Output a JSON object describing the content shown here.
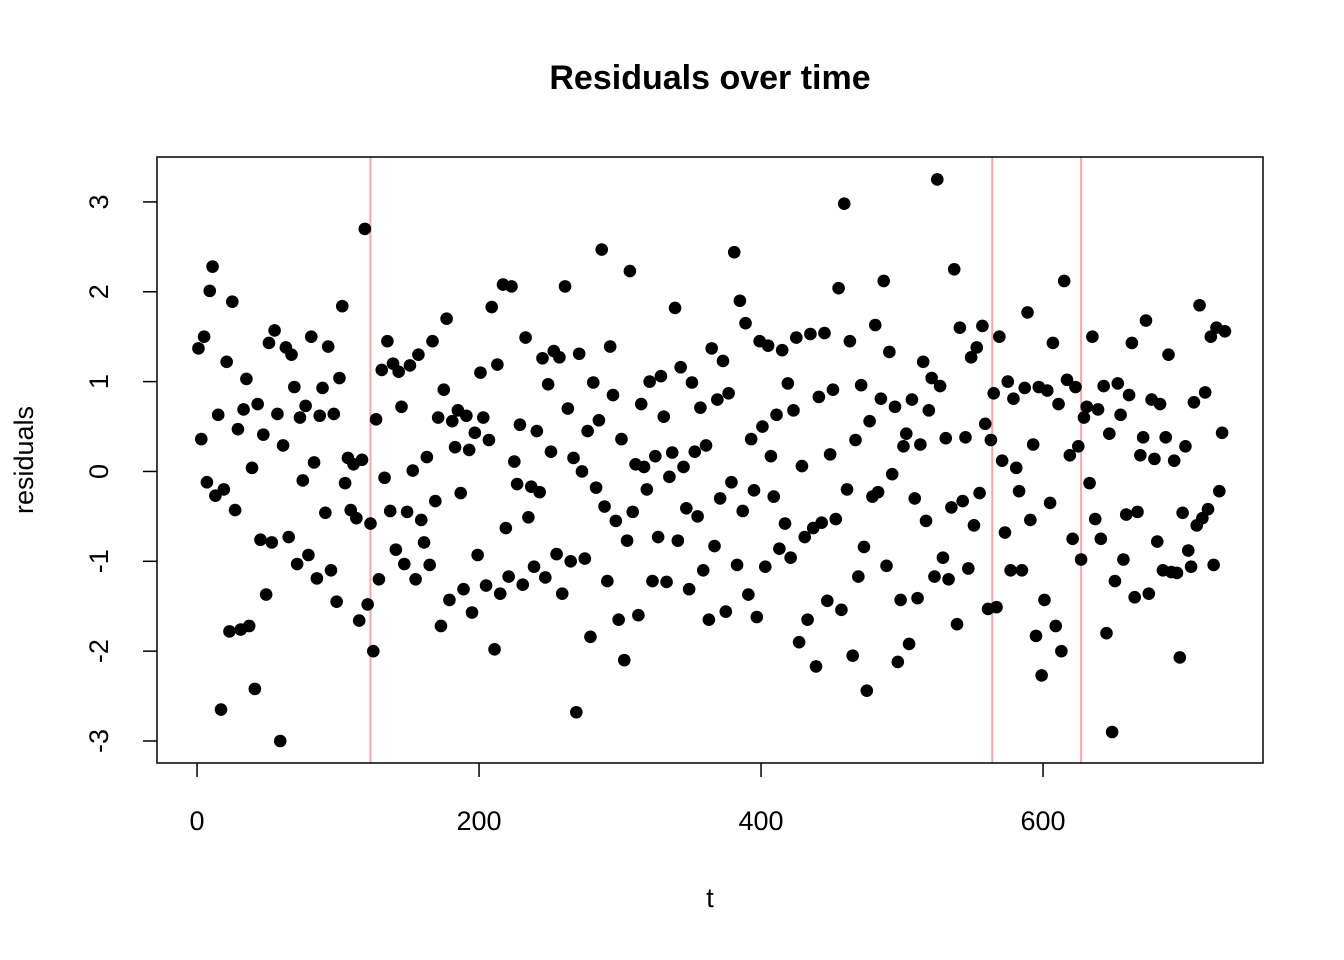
{
  "chart_data": {
    "type": "scatter",
    "title": "Residuals over time",
    "x_label": "t",
    "y_label": "residuals",
    "x": [
      1,
      3,
      5,
      7,
      9,
      11,
      13,
      15,
      17,
      19,
      21,
      23,
      25,
      27,
      29,
      31,
      33,
      35,
      37,
      39,
      41,
      43,
      45,
      47,
      49,
      51,
      53,
      55,
      57,
      59,
      61,
      63,
      65,
      67,
      69,
      71,
      73,
      75,
      77,
      79,
      81,
      83,
      85,
      87,
      89,
      91,
      93,
      95,
      97,
      99,
      101,
      103,
      105,
      107,
      109,
      111,
      113,
      115,
      117,
      119,
      121,
      123,
      125,
      127,
      129,
      131,
      133,
      135,
      137,
      139,
      141,
      143,
      145,
      147,
      149,
      151,
      153,
      155,
      157,
      159,
      161,
      163,
      165,
      167,
      169,
      171,
      173,
      175,
      177,
      179,
      181,
      183,
      185,
      187,
      189,
      191,
      193,
      195,
      197,
      199,
      201,
      203,
      205,
      207,
      209,
      211,
      213,
      215,
      217,
      219,
      221,
      223,
      225,
      227,
      229,
      231,
      233,
      235,
      237,
      239,
      241,
      243,
      245,
      247,
      249,
      251,
      253,
      255,
      257,
      259,
      261,
      263,
      265,
      267,
      269,
      271,
      273,
      275,
      277,
      279,
      281,
      283,
      285,
      287,
      289,
      291,
      293,
      295,
      297,
      299,
      301,
      303,
      305,
      307,
      309,
      311,
      313,
      315,
      317,
      319,
      321,
      323,
      325,
      327,
      329,
      331,
      333,
      335,
      337,
      339,
      341,
      343,
      345,
      347,
      349,
      351,
      353,
      355,
      357,
      359,
      361,
      363,
      365,
      367,
      369,
      371,
      373,
      375,
      377,
      379,
      381,
      383,
      385,
      387,
      389,
      391,
      393,
      395,
      397,
      399,
      401,
      403,
      405,
      407,
      409,
      411,
      413,
      415,
      417,
      419,
      421,
      423,
      425,
      427,
      429,
      431,
      433,
      435,
      437,
      439,
      441,
      443,
      445,
      447,
      449,
      451,
      453,
      455,
      457,
      459,
      461,
      463,
      465,
      467,
      469,
      471,
      473,
      475,
      477,
      479,
      481,
      483,
      485,
      487,
      489,
      491,
      493,
      495,
      497,
      499,
      501,
      503,
      505,
      507,
      509,
      511,
      513,
      515,
      517,
      519,
      521,
      523,
      525,
      527,
      529,
      531,
      533,
      535,
      537,
      539,
      541,
      543,
      545,
      547,
      549,
      551,
      553,
      555,
      557,
      559,
      561,
      563,
      565,
      567,
      569,
      571,
      573,
      575,
      577,
      579,
      581,
      583,
      585,
      587,
      589,
      591,
      593,
      595,
      597,
      599,
      601,
      603,
      605,
      607,
      609,
      611,
      613,
      615,
      617,
      619,
      621,
      623,
      625,
      627,
      629,
      631,
      633,
      635,
      637,
      639,
      641,
      643,
      645,
      647,
      649,
      651,
      653,
      655,
      657,
      659,
      661,
      663,
      665,
      667,
      669,
      671,
      673,
      675,
      677,
      679,
      681,
      683,
      685,
      687,
      689,
      691,
      693,
      695,
      697,
      699,
      701,
      703,
      705,
      707,
      709,
      711,
      713,
      715,
      717,
      719,
      721,
      723,
      725,
      727,
      729
    ],
    "values": [
      1.37,
      0.36,
      1.5,
      -0.12,
      2.01,
      2.28,
      -0.27,
      0.63,
      -2.65,
      -0.2,
      1.22,
      -1.78,
      1.89,
      -0.43,
      0.47,
      -1.76,
      0.69,
      1.03,
      -1.72,
      0.04,
      -2.42,
      0.75,
      -0.76,
      0.41,
      -1.37,
      1.43,
      -0.79,
      1.57,
      0.64,
      -3.0,
      0.29,
      1.38,
      -0.73,
      1.3,
      0.94,
      -1.03,
      0.6,
      -0.1,
      0.73,
      -0.93,
      1.5,
      0.1,
      -1.19,
      0.62,
      0.93,
      -0.46,
      1.39,
      -1.1,
      0.64,
      -1.45,
      1.04,
      1.84,
      -0.13,
      0.15,
      -0.43,
      0.08,
      -0.52,
      -1.66,
      0.13,
      2.7,
      -1.48,
      -0.58,
      -2.0,
      0.58,
      -1.2,
      1.13,
      -0.07,
      1.45,
      -0.44,
      1.2,
      -0.87,
      1.11,
      0.72,
      -1.03,
      -0.45,
      1.18,
      0.01,
      -1.2,
      1.3,
      -0.54,
      -0.79,
      0.16,
      -1.04,
      1.45,
      -0.33,
      0.6,
      -1.72,
      0.91,
      1.7,
      -1.43,
      0.56,
      0.27,
      0.68,
      -0.24,
      -1.31,
      0.62,
      0.24,
      -1.57,
      0.43,
      -0.93,
      1.1,
      0.6,
      -1.27,
      0.35,
      1.83,
      -1.98,
      1.19,
      -1.36,
      2.08,
      -0.63,
      -1.17,
      2.06,
      0.11,
      -0.14,
      0.52,
      -1.26,
      1.49,
      -0.51,
      -0.17,
      -1.06,
      0.45,
      -0.23,
      1.26,
      -1.18,
      0.97,
      0.22,
      1.34,
      -0.92,
      1.27,
      -1.36,
      2.06,
      0.7,
      -1.0,
      0.15,
      -2.68,
      1.31,
      0.0,
      -0.97,
      0.45,
      -1.84,
      0.99,
      -0.18,
      0.57,
      2.47,
      -0.39,
      -1.22,
      1.39,
      0.85,
      -0.55,
      -1.65,
      0.36,
      -2.1,
      -0.77,
      2.23,
      -0.45,
      0.08,
      -1.6,
      0.75,
      0.05,
      -0.2,
      1.0,
      -1.22,
      0.17,
      -0.73,
      1.06,
      0.61,
      -1.23,
      -0.06,
      0.21,
      1.82,
      -0.77,
      1.16,
      0.05,
      -0.41,
      -1.31,
      0.99,
      0.22,
      -0.5,
      0.71,
      -1.1,
      0.29,
      -1.65,
      1.37,
      -0.83,
      0.8,
      -0.3,
      1.23,
      -1.56,
      0.87,
      -0.12,
      2.44,
      -1.04,
      1.9,
      -0.44,
      1.65,
      -1.37,
      0.36,
      -0.21,
      -1.62,
      1.45,
      0.5,
      -1.06,
      1.4,
      0.17,
      -0.28,
      0.63,
      -0.86,
      1.35,
      -0.58,
      0.98,
      -0.96,
      0.68,
      1.49,
      -1.9,
      0.06,
      -0.73,
      -1.65,
      1.53,
      -0.63,
      -2.17,
      0.83,
      -0.57,
      1.54,
      -1.44,
      0.19,
      0.91,
      -0.53,
      2.04,
      -1.54,
      2.98,
      -0.2,
      1.45,
      -2.05,
      0.35,
      -1.17,
      0.96,
      -0.84,
      -2.44,
      0.56,
      -0.28,
      1.63,
      -0.23,
      0.81,
      2.12,
      -1.05,
      1.33,
      -0.03,
      0.72,
      -2.12,
      -1.43,
      0.28,
      0.42,
      -1.92,
      0.8,
      -0.3,
      -1.41,
      0.3,
      1.22,
      -0.55,
      0.68,
      1.04,
      -1.17,
      3.25,
      0.95,
      -0.96,
      0.37,
      -1.2,
      -0.4,
      2.25,
      -1.7,
      1.6,
      -0.33,
      0.38,
      -1.08,
      1.27,
      -0.6,
      1.38,
      -0.24,
      1.62,
      0.53,
      -1.53,
      0.35,
      0.87,
      -1.51,
      1.5,
      0.12,
      -0.68,
      1.0,
      -1.1,
      0.81,
      0.04,
      -0.22,
      -1.1,
      0.93,
      1.77,
      -0.54,
      0.3,
      -1.83,
      0.94,
      -2.27,
      -1.43,
      0.9,
      -0.35,
      1.43,
      -1.72,
      0.75,
      -2.0,
      2.12,
      1.02,
      0.18,
      -0.75,
      0.94,
      0.28,
      -0.98,
      0.6,
      0.72,
      -0.13,
      1.5,
      -0.53,
      0.69,
      -0.75,
      0.95,
      -1.8,
      0.42,
      -2.9,
      -1.22,
      0.98,
      0.63,
      -0.98,
      -0.48,
      0.85,
      1.43,
      -1.4,
      -0.45,
      0.18,
      0.38,
      1.68,
      -1.36,
      0.8,
      0.14,
      -0.78,
      0.75,
      -1.1,
      0.38,
      1.3,
      -1.12,
      0.12,
      -1.13,
      -2.07,
      -0.46,
      0.28,
      -0.88,
      -1.06,
      0.77,
      -0.6,
      1.85,
      -0.52,
      0.88,
      -0.42,
      1.5,
      -1.04,
      1.6,
      -0.22,
      0.43,
      1.56
    ],
    "color": "#000000",
    "vlines": [
      123,
      564,
      627
    ],
    "vline_color": "#f4a6ad",
    "xlim": [
      -28.4,
      756
    ],
    "ylim": [
      -3.245,
      3.5
    ],
    "xticks": [
      0,
      200,
      400,
      600
    ],
    "yticks": [
      -3,
      -2,
      -1,
      0,
      1,
      2,
      3
    ]
  }
}
